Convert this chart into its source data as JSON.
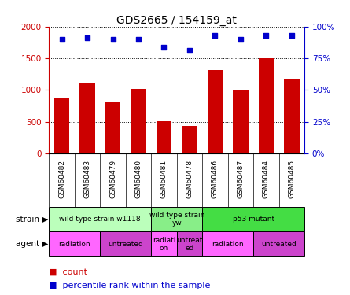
{
  "title": "GDS2665 / 154159_at",
  "samples": [
    "GSM60482",
    "GSM60483",
    "GSM60479",
    "GSM60480",
    "GSM60481",
    "GSM60478",
    "GSM60486",
    "GSM60487",
    "GSM60484",
    "GSM60485"
  ],
  "counts": [
    870,
    1110,
    800,
    1020,
    510,
    440,
    1320,
    1000,
    1500,
    1170
  ],
  "percentiles": [
    90,
    91,
    90,
    90,
    84,
    81,
    93,
    90,
    93,
    93
  ],
  "bar_color": "#cc0000",
  "dot_color": "#0000cc",
  "ylim_left": [
    0,
    2000
  ],
  "ylim_right": [
    0,
    100
  ],
  "yticks_left": [
    0,
    500,
    1000,
    1500,
    2000
  ],
  "ytick_labels_left": [
    "0",
    "500",
    "1000",
    "1500",
    "2000"
  ],
  "yticks_right": [
    0,
    25,
    50,
    75,
    100
  ],
  "ytick_labels_right": [
    "0%",
    "25%",
    "50%",
    "75%",
    "100%"
  ],
  "strain_groups": [
    {
      "label": "wild type strain w1118",
      "start": 0,
      "end": 4,
      "color": "#bbffbb"
    },
    {
      "label": "wild type strain\nyw",
      "start": 4,
      "end": 6,
      "color": "#88ee88"
    },
    {
      "label": "p53 mutant",
      "start": 6,
      "end": 10,
      "color": "#44dd44"
    }
  ],
  "agent_groups": [
    {
      "label": "radiation",
      "start": 0,
      "end": 2,
      "color": "#ff66ff"
    },
    {
      "label": "untreated",
      "start": 2,
      "end": 4,
      "color": "#cc44cc"
    },
    {
      "label": "radiati\non",
      "start": 4,
      "end": 5,
      "color": "#ff66ff"
    },
    {
      "label": "untreat\ned",
      "start": 5,
      "end": 6,
      "color": "#cc44cc"
    },
    {
      "label": "radiation",
      "start": 6,
      "end": 8,
      "color": "#ff66ff"
    },
    {
      "label": "untreated",
      "start": 8,
      "end": 10,
      "color": "#cc44cc"
    }
  ],
  "legend_count_color": "#cc0000",
  "legend_pct_color": "#0000cc",
  "row_label_strain": "strain",
  "row_label_agent": "agent",
  "background_color": "#ffffff",
  "tick_color_left": "#cc0000",
  "tick_color_right": "#0000cc"
}
